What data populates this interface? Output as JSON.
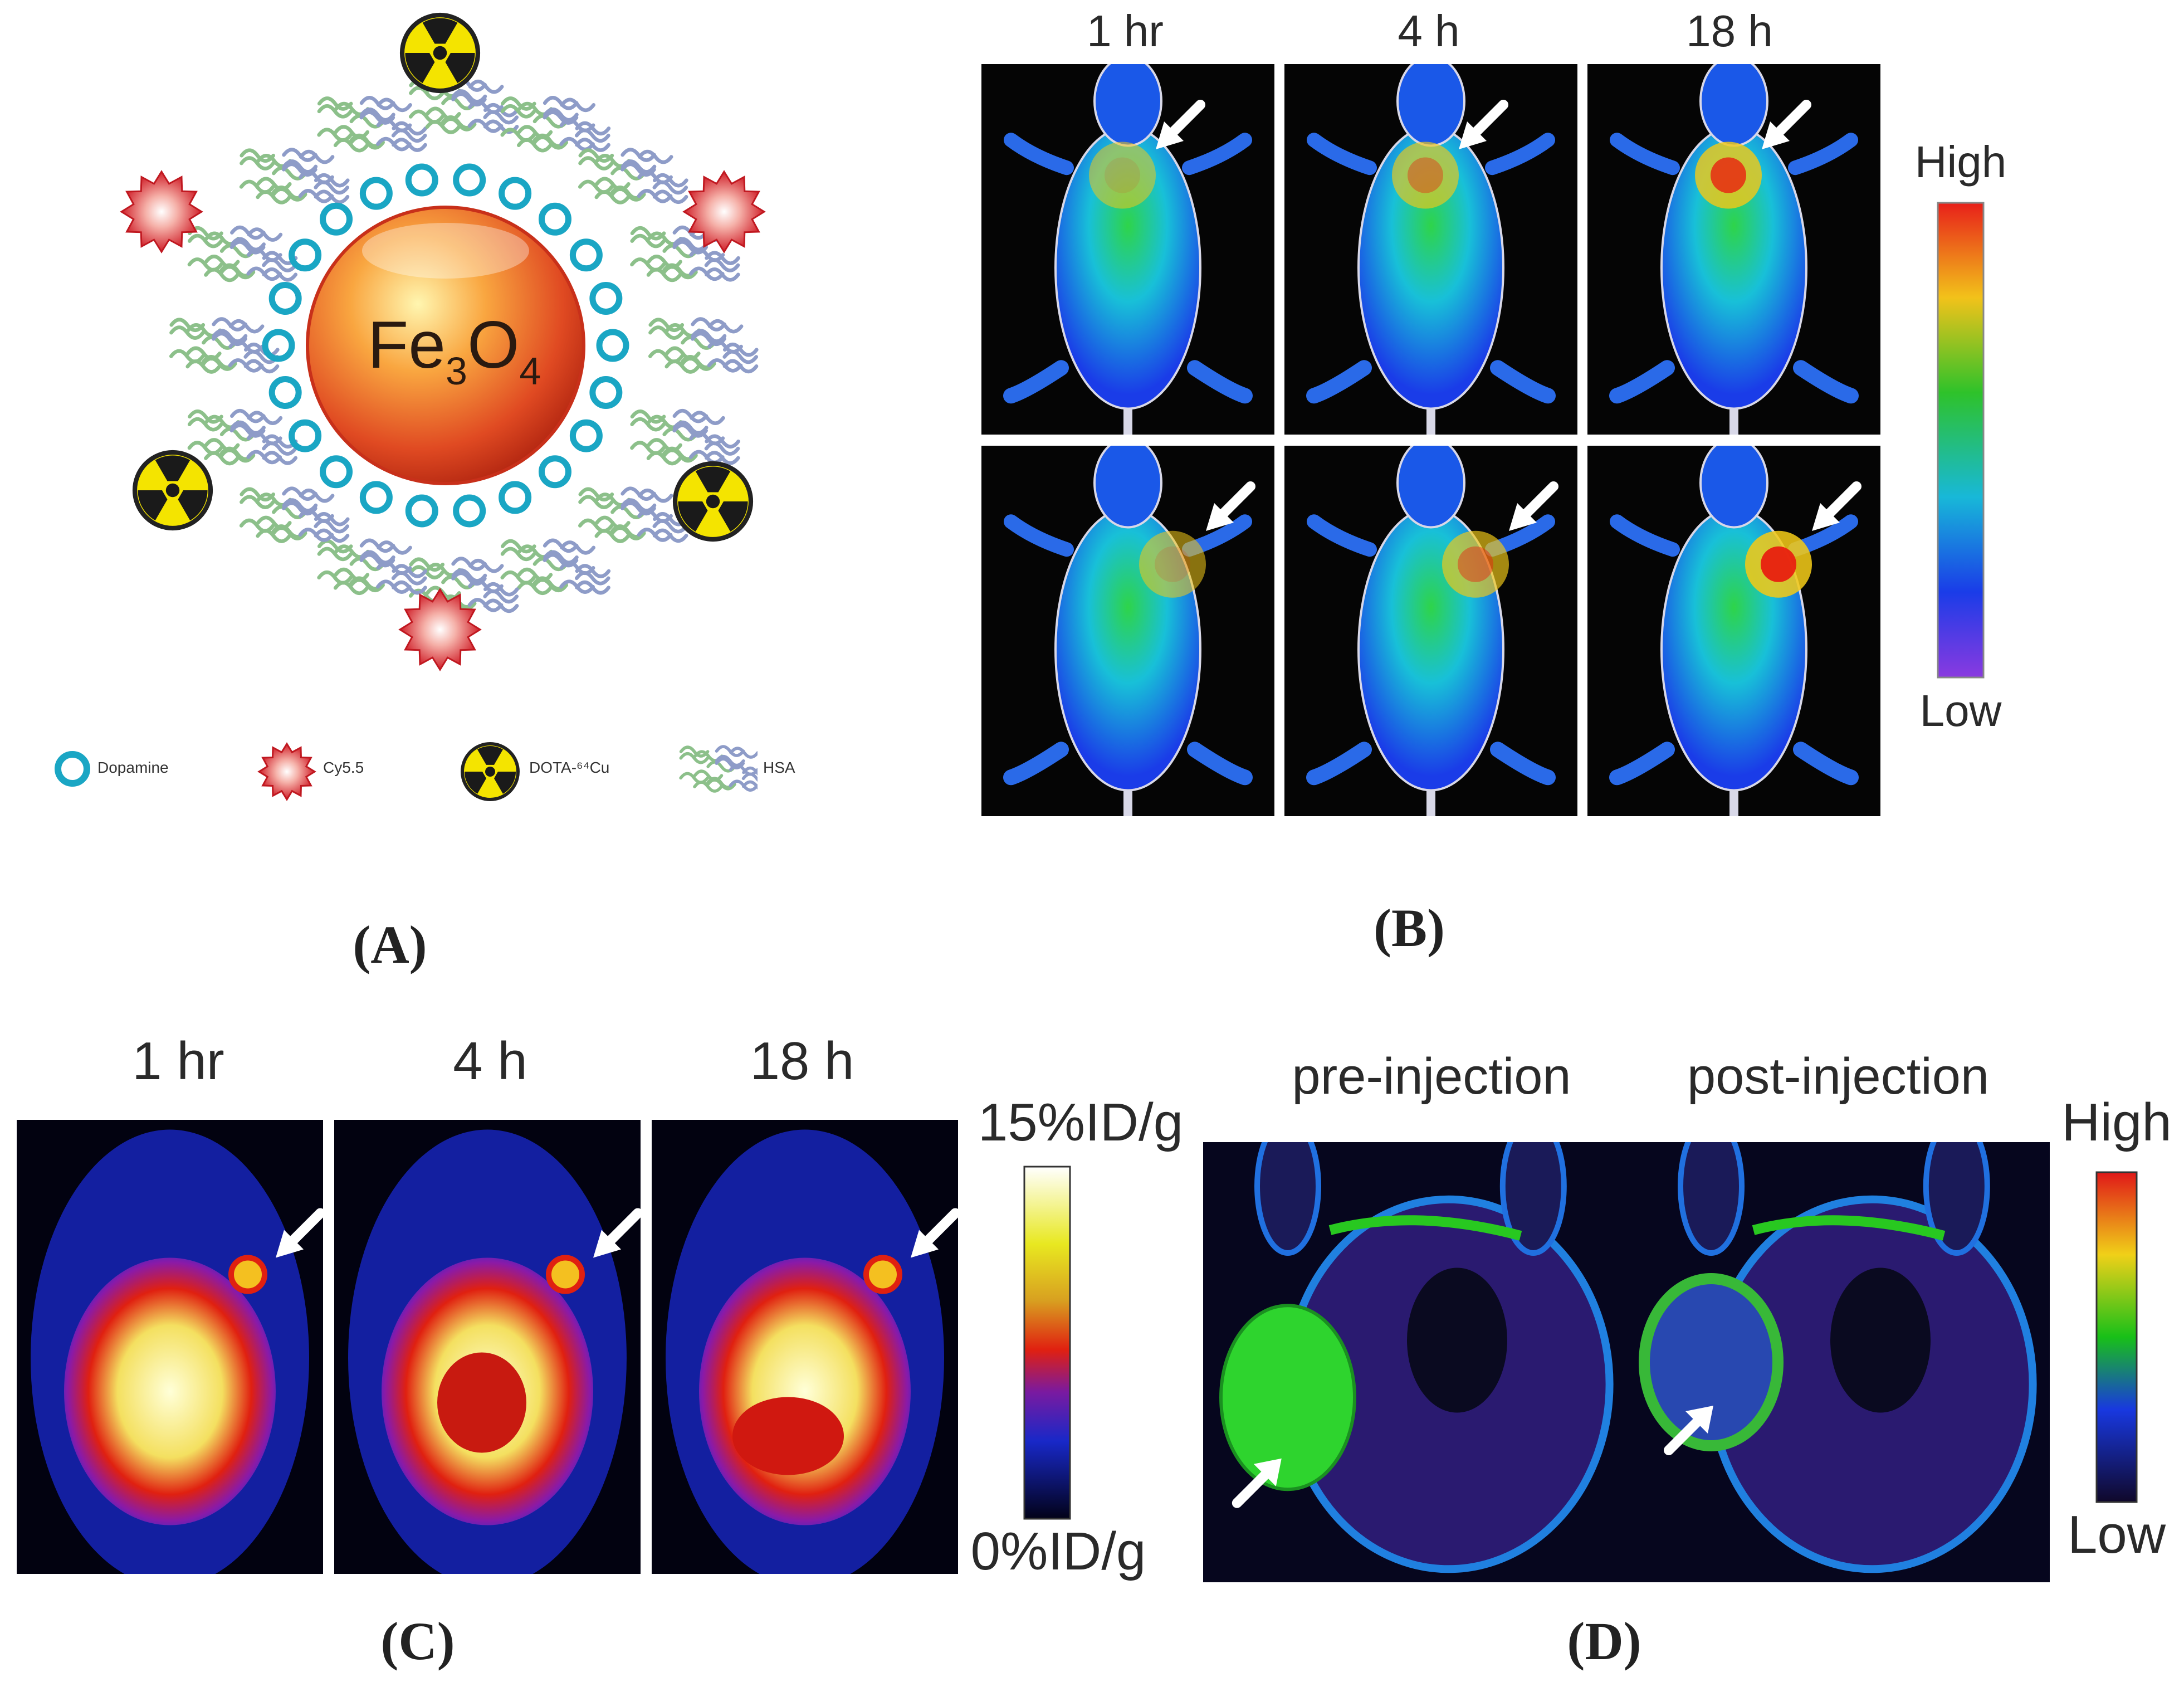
{
  "panel_a": {
    "label": "(A)",
    "core_text": "Fe",
    "core_sub1": "3",
    "core_text2": "O",
    "core_sub2": "4",
    "legend": [
      {
        "icon": "dopamine-ring-icon",
        "text": "Dopamine"
      },
      {
        "icon": "cy55-star-icon",
        "text": "Cy5.5"
      },
      {
        "icon": "radioactive-icon",
        "text": "DOTA-⁶⁴Cu"
      },
      {
        "icon": "hsa-protein-icon",
        "text": "HSA"
      }
    ]
  },
  "panel_b": {
    "label": "(B)",
    "times": [
      "1 hr",
      "4 h",
      "18 h"
    ],
    "scale_high": "High",
    "scale_low": "Low"
  },
  "panel_c": {
    "label": "(C)",
    "times": [
      "1 hr",
      "4 h",
      "18 h"
    ],
    "scale_high": "15%ID/g",
    "scale_low": "0%ID/g"
  },
  "panel_d": {
    "label": "(D)",
    "conditions": [
      "pre-injection",
      "post-injection"
    ],
    "scale_high": "High",
    "scale_low": "Low"
  },
  "colors": {
    "core": "#e8502a",
    "dopamine": "#1aa6c4",
    "cy55": "#d8262c",
    "radio_yellow": "#f4e400",
    "hsa_green": "#8cc08a",
    "hsa_blue": "#8e9cc8"
  }
}
